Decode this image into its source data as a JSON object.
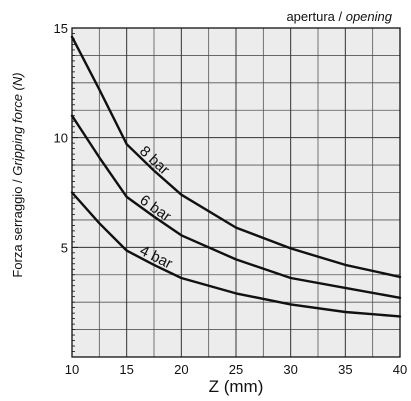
{
  "chart_data": {
    "type": "line",
    "title": "apertura",
    "title_separator": " / ",
    "title_italic": "opening",
    "xlabel": "Z (mm)",
    "ylabel": "Forza serraggio",
    "ylabel_separator": " / ",
    "ylabel_italic": "Gripping force",
    "ylabel_unit": " (N)",
    "xlim": [
      10,
      40
    ],
    "ylim": [
      0,
      15
    ],
    "x_ticks": [
      10,
      15,
      20,
      25,
      30,
      35,
      40
    ],
    "x_tick_labels": [
      "10",
      "15",
      "20",
      "25",
      "30",
      "35",
      "40"
    ],
    "y_ticks": [
      5,
      10,
      15
    ],
    "y_tick_labels": [
      "5",
      "10",
      "15"
    ],
    "grid": true,
    "x_grid_step": 2.5,
    "y_grid_step": 1.25,
    "background_color": "#ececec",
    "line_color": "#111111",
    "series": [
      {
        "name": "8 bar",
        "x": [
          10,
          12.5,
          15,
          17.5,
          20,
          25,
          30,
          35,
          40
        ],
        "y": [
          14.6,
          12.2,
          9.7,
          8.5,
          7.4,
          5.9,
          4.95,
          4.2,
          3.65
        ]
      },
      {
        "name": "6 bar",
        "x": [
          10,
          12.5,
          15,
          17.5,
          20,
          25,
          30,
          35,
          40
        ],
        "y": [
          11.0,
          9.1,
          7.3,
          6.4,
          5.55,
          4.45,
          3.6,
          3.15,
          2.7
        ]
      },
      {
        "name": "4 bar",
        "x": [
          10,
          12.5,
          15,
          17.5,
          20,
          25,
          30,
          35,
          40
        ],
        "y": [
          7.5,
          6.1,
          4.85,
          4.2,
          3.6,
          2.9,
          2.4,
          2.05,
          1.85
        ]
      }
    ]
  }
}
